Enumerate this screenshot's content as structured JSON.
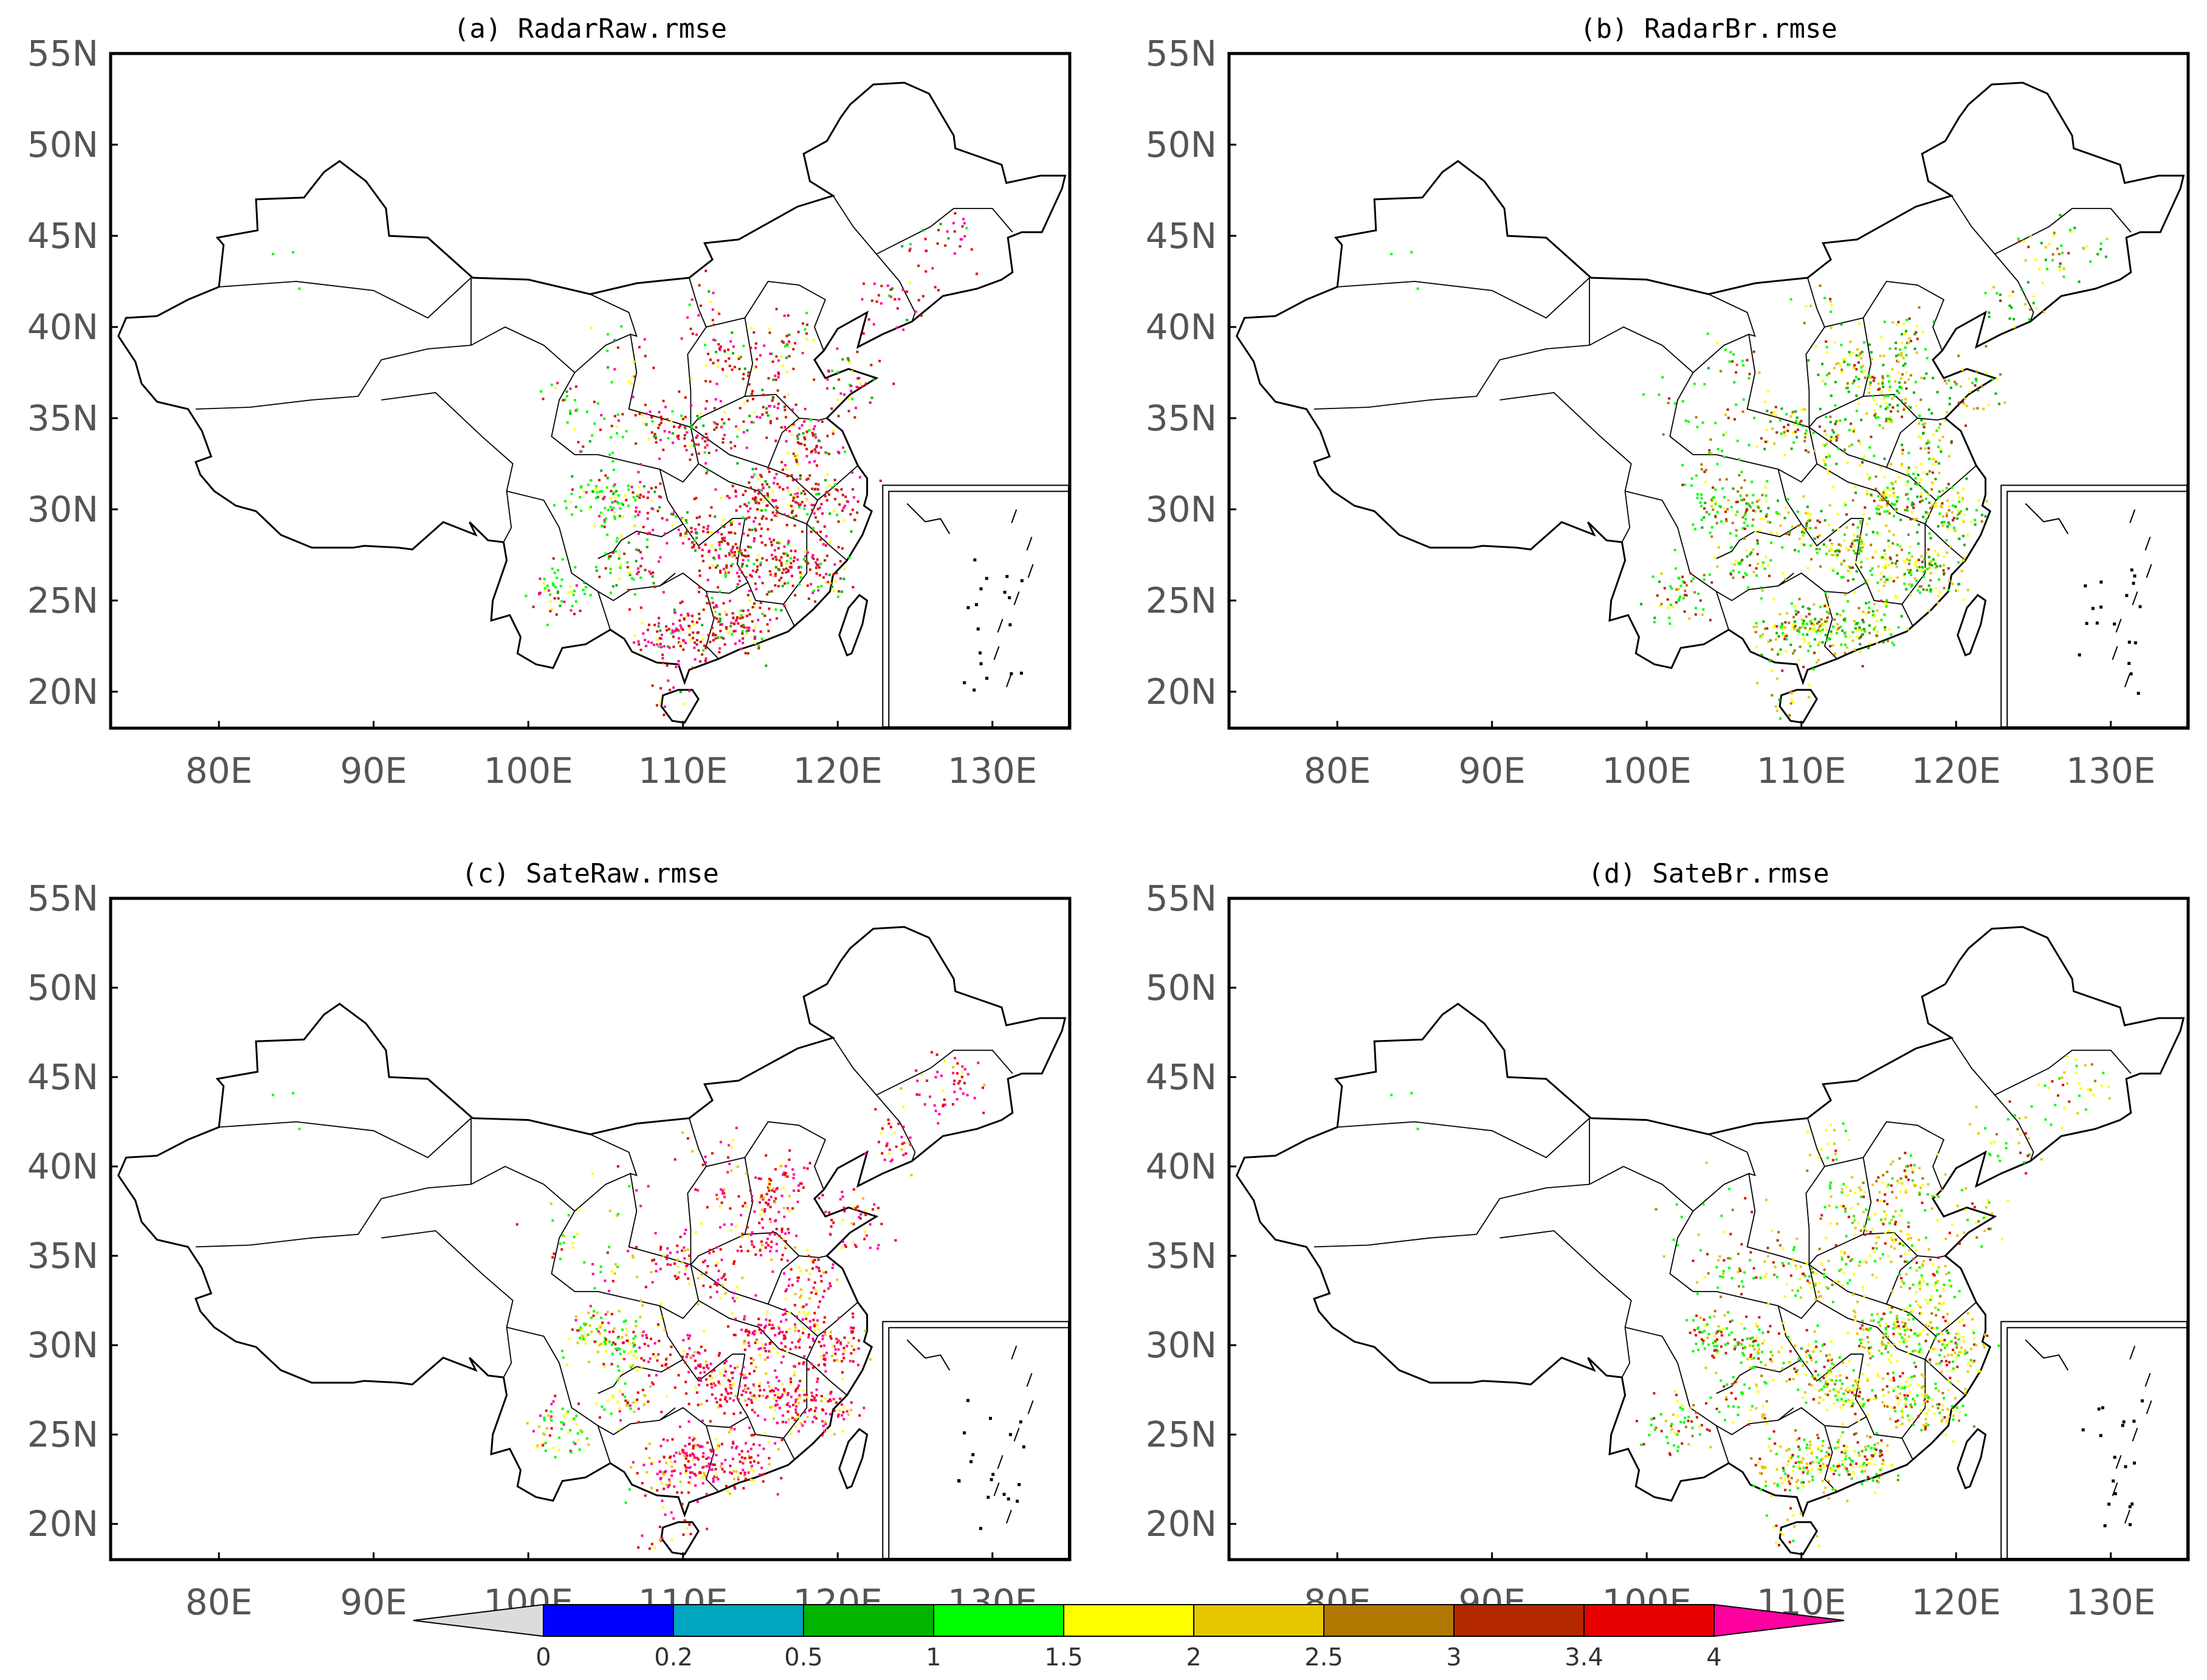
{
  "chart_data": {
    "type": "scatter",
    "subtype": "station-map",
    "panels": [
      {
        "id": "a",
        "title": "(a) RadarRaw.rmse",
        "dominant_ranges": [
          "3-3.4",
          "3.4-4",
          "> 4"
        ],
        "secondary_ranges": [
          "0.5-1",
          "1-1.5",
          "1.5-2"
        ]
      },
      {
        "id": "b",
        "title": "(b) RadarBr.rmse",
        "dominant_ranges": [
          "0.5-1",
          "1-1.5",
          "1.5-2",
          "2-2.5"
        ],
        "secondary_ranges": [
          "2.5-3",
          "3-3.4"
        ]
      },
      {
        "id": "c",
        "title": "(c) SateRaw.rmse",
        "dominant_ranges": [
          "3.4-4",
          "> 4"
        ],
        "secondary_ranges": [
          "1.5-2",
          "2-2.5"
        ]
      },
      {
        "id": "d",
        "title": "(d) SateBr.rmse",
        "dominant_ranges": [
          "1-1.5",
          "1.5-2",
          "2-2.5"
        ],
        "secondary_ranges": [
          "2.5-3",
          "3-3.4",
          "3.4-4"
        ]
      }
    ],
    "x_ticks": [
      "80E",
      "90E",
      "100E",
      "110E",
      "120E",
      "130E"
    ],
    "x_tick_values": [
      80,
      90,
      100,
      110,
      120,
      130
    ],
    "y_ticks": [
      "20N",
      "25N",
      "30N",
      "35N",
      "40N",
      "45N",
      "50N",
      "55N"
    ],
    "y_tick_values": [
      20,
      25,
      30,
      35,
      40,
      45,
      50,
      55
    ],
    "xlim": [
      73,
      135
    ],
    "ylim": [
      18,
      55
    ],
    "colorbar": {
      "labels": [
        "0",
        "0.2",
        "0.5",
        "1",
        "1.5",
        "2",
        "2.5",
        "3",
        "3.4",
        "4"
      ],
      "colors": [
        "#dcdcdc",
        "#0000ff",
        "#00a5c0",
        "#00b400",
        "#00ff00",
        "#ffff00",
        "#e6c800",
        "#b07800",
        "#b42800",
        "#e60000",
        "#ff00a0"
      ]
    }
  }
}
